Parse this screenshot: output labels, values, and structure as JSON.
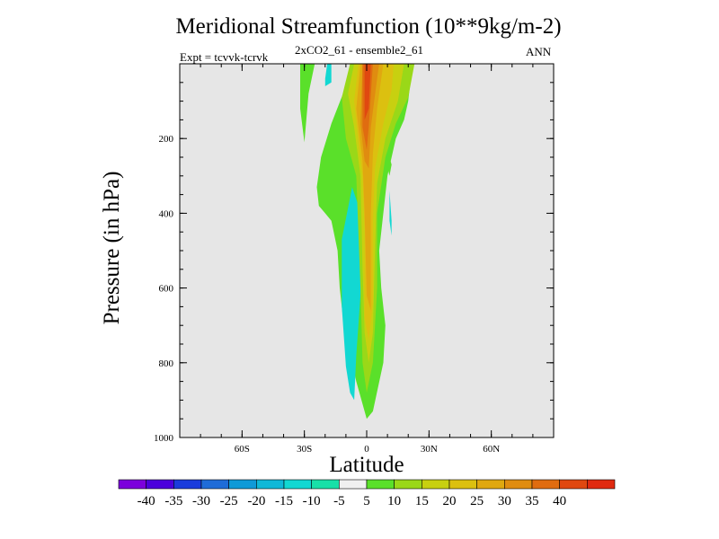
{
  "chart_data": {
    "type": "heatmap",
    "title": "Meridional Streamfunction (10**9kg/m-2)",
    "subtitle": "2xCO2_61 - ensemble2_61",
    "experiment": "Expt = tcvvk-tcrvk",
    "season": "ANN",
    "xlabel": "Latitude",
    "ylabel": "Pressure (in hPa)",
    "xlim": [
      -90,
      90
    ],
    "ylim": [
      1000,
      0
    ],
    "x_ticks": [
      {
        "value": -60,
        "label": "60S"
      },
      {
        "value": -30,
        "label": "30S"
      },
      {
        "value": 0,
        "label": "0"
      },
      {
        "value": 30,
        "label": "30N"
      },
      {
        "value": 60,
        "label": "60N"
      }
    ],
    "y_ticks": [
      {
        "value": 200,
        "label": "200"
      },
      {
        "value": 400,
        "label": "400"
      },
      {
        "value": 600,
        "label": "600"
      },
      {
        "value": 800,
        "label": "800"
      },
      {
        "value": 1000,
        "label": "1000"
      }
    ],
    "background_color": "#e6e6e6",
    "colorbar": {
      "colors": [
        "#7c00dc",
        "#4b00dc",
        "#1a3cdc",
        "#1f6cd8",
        "#0f9ad8",
        "#10b8d8",
        "#12d8d2",
        "#18e0a8",
        "#f0f0f0",
        "#5ae02a",
        "#9ad818",
        "#c8d010",
        "#dcc010",
        "#e0a810",
        "#e08c10",
        "#e06c10",
        "#e04810",
        "#e02a10"
      ],
      "levels": [
        -40,
        -35,
        -30,
        -25,
        -20,
        -15,
        -10,
        -5,
        5,
        10,
        15,
        20,
        25,
        30,
        35,
        40
      ]
    },
    "contours": [
      {
        "name": "pos-5-a",
        "color": "#5ae02a",
        "points": [
          [
            -5,
            0
          ],
          [
            -10,
            60
          ],
          [
            -17,
            160
          ],
          [
            -22,
            250
          ],
          [
            -24,
            330
          ],
          [
            -23,
            380
          ],
          [
            -20,
            400
          ],
          [
            -17,
            420
          ],
          [
            -14,
            500
          ],
          [
            -13,
            600
          ],
          [
            -11,
            700
          ],
          [
            -5,
            850
          ],
          [
            0,
            950
          ],
          [
            3,
            930
          ],
          [
            8,
            800
          ],
          [
            9,
            700
          ],
          [
            7,
            600
          ],
          [
            6,
            500
          ],
          [
            8,
            400
          ],
          [
            10,
            300
          ],
          [
            14,
            200
          ],
          [
            18,
            150
          ],
          [
            20,
            100
          ],
          [
            22,
            0
          ]
        ]
      },
      {
        "name": "pos-5-b",
        "color": "#5ae02a",
        "points": [
          [
            -12,
            400
          ],
          [
            -8,
            330
          ],
          [
            -5,
            350
          ],
          [
            -6,
            420
          ],
          [
            -9,
            460
          ],
          [
            -11,
            440
          ]
        ]
      },
      {
        "name": "pos-5-c",
        "color": "#5ae02a",
        "points": [
          [
            -29,
            0
          ],
          [
            -25,
            0
          ],
          [
            -28,
            80
          ],
          [
            -30,
            210
          ],
          [
            -32,
            120
          ],
          [
            -32,
            0
          ]
        ]
      },
      {
        "name": "pos-5-d",
        "color": "#5ae02a",
        "points": [
          [
            8,
            230
          ],
          [
            11,
            300
          ],
          [
            12,
            270
          ],
          [
            10,
            230
          ]
        ]
      },
      {
        "name": "neg-10-a",
        "color": "#12d8d2",
        "points": [
          [
            -7,
            330
          ],
          [
            -12,
            470
          ],
          [
            -12,
            650
          ],
          [
            -10,
            810
          ],
          [
            -8,
            880
          ],
          [
            -6,
            900
          ],
          [
            -5,
            780
          ],
          [
            -3,
            620
          ],
          [
            -2,
            500
          ],
          [
            -4,
            380
          ]
        ]
      },
      {
        "name": "neg-10-b",
        "color": "#12d8d2",
        "points": [
          [
            -19,
            0
          ],
          [
            -20,
            40
          ],
          [
            -20,
            60
          ],
          [
            -17,
            50
          ],
          [
            -17,
            0
          ]
        ]
      },
      {
        "name": "neg-10-c",
        "color": "#12d8d2",
        "points": [
          [
            11,
            340
          ],
          [
            12,
            420
          ],
          [
            12,
            460
          ],
          [
            11,
            420
          ]
        ]
      },
      {
        "name": "pos-10-a",
        "color": "#9ad818",
        "points": [
          [
            -8,
            0
          ],
          [
            -12,
            90
          ],
          [
            -10,
            200
          ],
          [
            -5,
            300
          ],
          [
            -3,
            600
          ],
          [
            -2,
            800
          ],
          [
            0,
            880
          ],
          [
            3,
            800
          ],
          [
            5,
            600
          ],
          [
            5,
            400
          ],
          [
            9,
            250
          ],
          [
            14,
            160
          ],
          [
            20,
            90
          ],
          [
            23,
            0
          ]
        ]
      },
      {
        "name": "pos-15-a",
        "color": "#c8d010",
        "points": [
          [
            -6,
            0
          ],
          [
            -9,
            80
          ],
          [
            -6,
            170
          ],
          [
            -3,
            300
          ],
          [
            -2,
            550
          ],
          [
            -1,
            720
          ],
          [
            1,
            800
          ],
          [
            3,
            720
          ],
          [
            4,
            500
          ],
          [
            5,
            320
          ],
          [
            9,
            200
          ],
          [
            15,
            100
          ],
          [
            18,
            0
          ]
        ]
      },
      {
        "name": "pos-20-a",
        "color": "#dcc010",
        "points": [
          [
            -4,
            0
          ],
          [
            -6,
            100
          ],
          [
            -4,
            210
          ],
          [
            -2,
            300
          ],
          [
            -1,
            450
          ],
          [
            -1,
            680
          ],
          [
            1,
            740
          ],
          [
            3,
            640
          ],
          [
            3,
            420
          ],
          [
            4,
            280
          ],
          [
            8,
            160
          ],
          [
            12,
            70
          ],
          [
            13,
            0
          ]
        ]
      },
      {
        "name": "pos-25-a",
        "color": "#e0a810",
        "points": [
          [
            -3,
            0
          ],
          [
            -5,
            120
          ],
          [
            -2,
            260
          ],
          [
            -1,
            400
          ],
          [
            0,
            620
          ],
          [
            2,
            660
          ],
          [
            2,
            400
          ],
          [
            3,
            240
          ],
          [
            5,
            120
          ],
          [
            8,
            0
          ]
        ]
      },
      {
        "name": "pos-30-a",
        "color": "#e08c10",
        "points": [
          [
            -2,
            0
          ],
          [
            -3,
            160
          ],
          [
            -1,
            260
          ],
          [
            1,
            280
          ],
          [
            2,
            170
          ],
          [
            5,
            40
          ],
          [
            6,
            0
          ]
        ]
      },
      {
        "name": "pos-35-a",
        "color": "#e06c10",
        "points": [
          [
            -2,
            0
          ],
          [
            -2,
            170
          ],
          [
            0,
            230
          ],
          [
            1,
            170
          ],
          [
            3,
            0
          ]
        ]
      },
      {
        "name": "pos-40-a",
        "color": "#e04810",
        "points": [
          [
            -1,
            0
          ],
          [
            -1,
            150
          ],
          [
            1,
            120
          ],
          [
            2,
            0
          ]
        ]
      }
    ]
  }
}
